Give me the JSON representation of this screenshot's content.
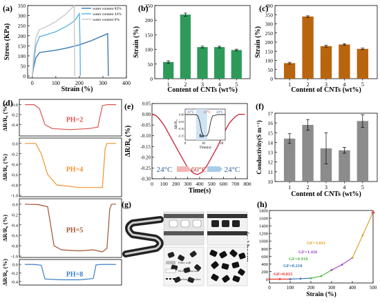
{
  "panels": {
    "a": {
      "tag": "(a)"
    },
    "b": {
      "tag": "(b)"
    },
    "c": {
      "tag": "(c)"
    },
    "d": {
      "tag": "(d)"
    },
    "e": {
      "tag": "(e)"
    },
    "f": {
      "tag": "(f)"
    },
    "g": {
      "tag": "(g)"
    },
    "h": {
      "tag": "(h)"
    }
  },
  "chart_data": [
    {
      "id": "a",
      "type": "line",
      "xlabel": "Strain (%)",
      "ylabel": "Stress (KPa)",
      "xlim": [
        -20,
        400
      ],
      "ylim": [
        -10,
        350
      ],
      "xticks": [
        0,
        100,
        200,
        300,
        400
      ],
      "yticks": [
        0,
        50,
        100,
        150,
        200,
        250,
        300,
        350
      ],
      "legend_position": "top-right",
      "series": [
        {
          "name": "water content 85%",
          "color": "#3a78b5",
          "x": [
            0,
            5,
            15,
            30,
            50,
            100,
            150,
            200,
            250,
            300,
            320,
            322,
            323
          ],
          "y": [
            0,
            40,
            90,
            115,
            120,
            128,
            140,
            155,
            175,
            200,
            210,
            100,
            0
          ]
        },
        {
          "name": "water content 43%",
          "color": "#5ab4e6",
          "x": [
            0,
            5,
            15,
            30,
            60,
            100,
            150,
            180,
            200,
            203,
            204
          ],
          "y": [
            0,
            60,
            150,
            195,
            205,
            220,
            250,
            275,
            310,
            150,
            0
          ]
        },
        {
          "name": "water content 0%",
          "color": "#c8c8c8",
          "x": [
            0,
            5,
            15,
            30,
            60,
            100,
            140,
            170,
            178,
            180
          ],
          "y": [
            0,
            90,
            190,
            230,
            245,
            270,
            305,
            340,
            350,
            0
          ]
        }
      ]
    },
    {
      "id": "b",
      "type": "bar",
      "xlabel": "Content of CNTs (wt%)",
      "ylabel": "Strain (%)",
      "categories": [
        "1",
        "2",
        "3",
        "4",
        "5"
      ],
      "values": [
        57,
        219,
        108,
        108,
        98
      ],
      "errors": [
        4,
        5,
        3,
        3,
        3
      ],
      "ylim": [
        0,
        250
      ],
      "yticks": [
        0,
        50,
        100,
        150,
        200,
        250
      ],
      "color": "#2e9a5a"
    },
    {
      "id": "c",
      "type": "bar",
      "xlabel": "Content of CNTs (wt%)",
      "ylabel": "Strain (%)",
      "categories": [
        "1",
        "2",
        "3",
        "4",
        "5"
      ],
      "values": [
        85,
        340,
        178,
        187,
        163
      ],
      "errors": [
        5,
        4,
        5,
        4,
        4
      ],
      "ylim": [
        0,
        400
      ],
      "yticks": [
        0,
        50,
        100,
        150,
        200,
        250,
        300,
        350,
        400
      ],
      "color": "#b9650f"
    },
    {
      "id": "d",
      "type": "line",
      "ylabel": "ΔR/R₀ (%)",
      "subplots": [
        {
          "label": "PH=2",
          "color": "#d9534f",
          "ylim": [
            -0.6,
            0.05
          ],
          "yticks": [
            "0.0",
            "-0.2",
            "-0.4"
          ],
          "x": [
            0,
            10,
            16,
            22,
            30,
            50,
            70,
            80,
            85,
            90,
            100
          ],
          "y": [
            0,
            0,
            -0.08,
            -0.4,
            -0.48,
            -0.5,
            -0.48,
            -0.45,
            -0.02,
            0,
            0
          ]
        },
        {
          "label": "PH=4",
          "color": "#f0922e",
          "ylim": [
            -1.0,
            0.05
          ],
          "yticks": [
            "0.0",
            "-0.2",
            "-0.4",
            "-0.6",
            "-0.8",
            "-1.0"
          ],
          "x": [
            0,
            12,
            18,
            25,
            35,
            60,
            75,
            85,
            88,
            90,
            100
          ],
          "y": [
            0,
            0,
            -0.2,
            -0.6,
            -0.8,
            -0.85,
            -0.85,
            -0.85,
            -0.1,
            0,
            0
          ]
        },
        {
          "label": "PH=5",
          "color": "#a0522d",
          "ylim": [
            -1.0,
            0.05
          ],
          "yticks": [
            "0.0",
            "-0.2",
            "-0.4",
            "-0.6",
            "-0.8",
            "-1.0"
          ],
          "x": [
            0,
            15,
            25,
            32,
            40,
            60,
            75,
            85,
            90,
            93,
            95,
            100
          ],
          "y": [
            0,
            -0.01,
            -0.05,
            -0.8,
            -0.88,
            -0.9,
            -0.88,
            -0.92,
            -0.85,
            -0.1,
            0,
            0
          ]
        },
        {
          "label": "PH=8",
          "color": "#3a7fc4",
          "ylim": [
            -0.45,
            0.05
          ],
          "yticks": [
            "0.0",
            "-0.2",
            "-0.4"
          ],
          "x": [
            0,
            10,
            18,
            22,
            40,
            60,
            70,
            75,
            78,
            85,
            100
          ],
          "y": [
            0,
            0,
            -0.02,
            -0.34,
            -0.36,
            -0.36,
            -0.34,
            -0.33,
            -0.01,
            0,
            0
          ]
        }
      ]
    },
    {
      "id": "e",
      "type": "line",
      "xlabel": "Time(s)",
      "ylabel": "ΔR/R₀ (%)",
      "xlim": [
        0,
        800
      ],
      "ylim": [
        -0.3,
        0.05
      ],
      "xticks": [
        0,
        100,
        200,
        300,
        400,
        500,
        600,
        700,
        800
      ],
      "yticks": [
        "0.05",
        "0.00",
        "-0.05",
        "-0.10",
        "-0.15",
        "-0.20",
        "-0.25",
        "-0.30"
      ],
      "color": "#c81e2e",
      "x": [
        0,
        30,
        60,
        100,
        150,
        200,
        250,
        300,
        350,
        380,
        420,
        460,
        500,
        550,
        600,
        650,
        700,
        730,
        780
      ],
      "y": [
        0.0,
        -0.005,
        -0.02,
        -0.05,
        -0.1,
        -0.15,
        -0.2,
        -0.25,
        -0.275,
        -0.28,
        -0.27,
        -0.24,
        -0.2,
        -0.15,
        -0.09,
        -0.04,
        -0.01,
        0.0,
        0.0
      ],
      "temperature_labels": [
        "24°C",
        "60°C",
        "24°C"
      ],
      "inset": {
        "xlabel": "Time(s)",
        "ylabel": "ΔR/R₀",
        "xticks": [
          0,
          10,
          20
        ],
        "yticks": [
          "0.00",
          "-0.05",
          "-0.10",
          "-0.15"
        ],
        "shaded_label": "6s",
        "temperature_labels": [
          "29°C",
          "31°C",
          "29°C"
        ],
        "x": [
          0,
          3,
          6,
          7,
          8,
          9,
          10,
          12,
          13,
          14,
          15,
          18,
          22
        ],
        "y": [
          0,
          0,
          0,
          -0.01,
          -0.05,
          -0.12,
          -0.15,
          -0.15,
          -0.12,
          -0.05,
          -0.01,
          0,
          0
        ]
      }
    },
    {
      "id": "f",
      "type": "bar",
      "xlabel": "Content of CNTs (wt%)",
      "ylabel": "Conductivity(S m⁻¹)",
      "categories": [
        "1",
        "2",
        "3",
        "4",
        "5"
      ],
      "values": [
        14.4,
        15.8,
        13.4,
        13.2,
        16.2
      ],
      "errors": [
        0.5,
        0.55,
        1.6,
        0.3,
        0.65
      ],
      "ylim": [
        10,
        17
      ],
      "yticks": [
        10,
        11,
        12,
        13,
        14,
        15,
        16,
        17
      ],
      "color": "#8c8c8c"
    },
    {
      "id": "h",
      "type": "line",
      "xlabel": "Strain (%)",
      "ylabel": "ΔR/R₀ (%)",
      "xlim": [
        0,
        500
      ],
      "ylim": [
        -100,
        1800
      ],
      "xticks": [
        0,
        100,
        200,
        300,
        400,
        500
      ],
      "yticks": [
        0,
        200,
        400,
        600,
        800,
        1000,
        1200,
        1400,
        1600,
        1800
      ],
      "segments": [
        {
          "label": "GF=0.015",
          "color": "#e8332b",
          "x": [
            0,
            50,
            100
          ],
          "y": [
            0,
            1,
            2
          ]
        },
        {
          "label": "GF=0.218",
          "color": "#3579c2",
          "x": [
            100,
            150,
            200
          ],
          "y": [
            2,
            12,
            24
          ]
        },
        {
          "label": "GF=0.918",
          "color": "#57b947",
          "x": [
            200,
            250,
            300
          ],
          "y": [
            24,
            80,
            240
          ]
        },
        {
          "label": "GF=1.426",
          "color": "#a24dc9",
          "x": [
            300,
            350,
            400
          ],
          "y": [
            240,
            380,
            560
          ]
        },
        {
          "label": "GF=3.031",
          "color": "#e0a12a",
          "x": [
            400,
            450,
            500
          ],
          "y": [
            560,
            1150,
            1760
          ]
        }
      ]
    },
    {
      "id": "g",
      "type": "diagram",
      "legend": [
        "Fiber wall",
        "Hollow structure",
        "Carbon nanotubes"
      ]
    }
  ]
}
